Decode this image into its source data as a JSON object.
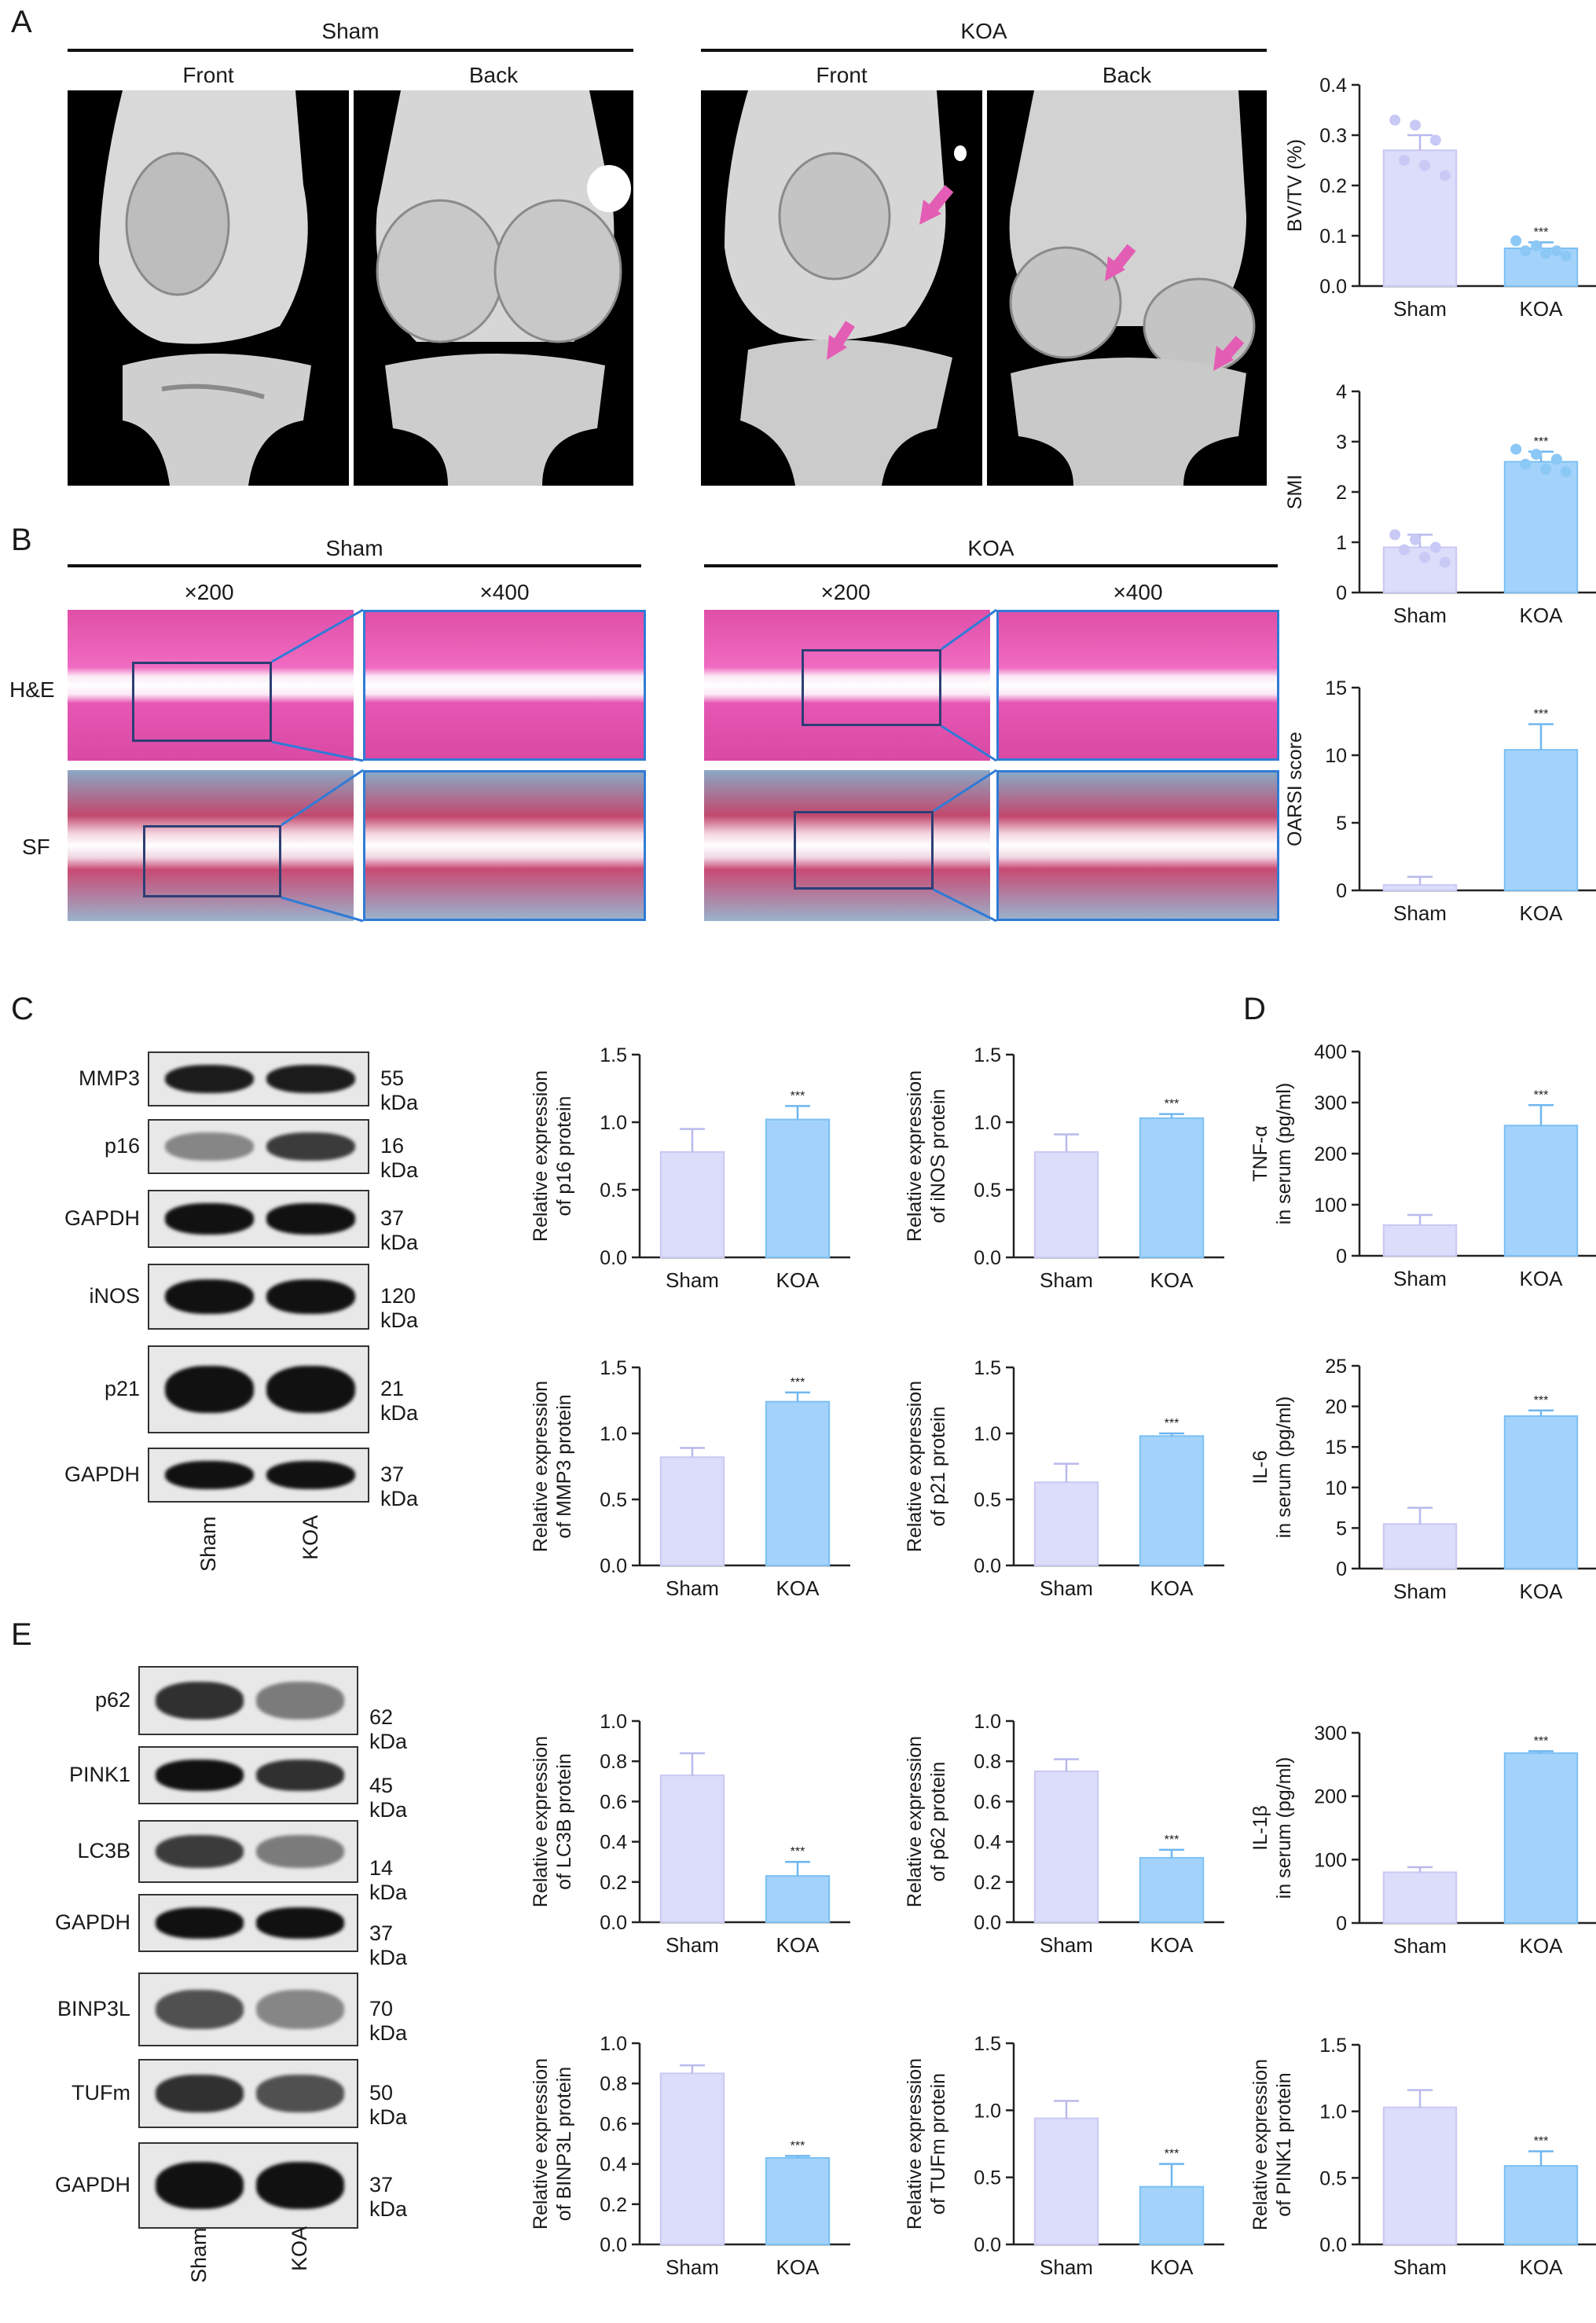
{
  "panels": {
    "A": "A",
    "B": "B",
    "C": "C",
    "D": "D",
    "E": "E"
  },
  "panelA": {
    "sham_title": "Sham",
    "koa_title": "KOA",
    "front": "Front",
    "back": "Back"
  },
  "panelB": {
    "sham_title": "Sham",
    "koa_title": "KOA",
    "mag_low": "×200",
    "mag_high": "×400",
    "row_he": "H&E",
    "row_sf": "SF"
  },
  "colors": {
    "sham_bar": "#dcdcfb",
    "sham_stroke": "#c9c9f2",
    "koa_bar": "#a3d3fb",
    "koa_stroke": "#7cc0f5",
    "sig": "#5a5ab0",
    "arrow": "#e35db5"
  },
  "blotC": {
    "rows": [
      {
        "name": "MMP3",
        "kda": "55 kDa"
      },
      {
        "name": "p16",
        "kda": "16 kDa"
      },
      {
        "name": "GAPDH",
        "kda": "37 kDa"
      },
      {
        "name": "iNOS",
        "kda": "120 kDa"
      },
      {
        "name": "p21",
        "kda": "21 kDa"
      },
      {
        "name": "GAPDH",
        "kda": "37 kDa"
      }
    ],
    "lanes": [
      "Sham",
      "KOA"
    ]
  },
  "blotE": {
    "rows": [
      {
        "name": "p62",
        "kda": "62 kDa"
      },
      {
        "name": "PINK1",
        "kda": "45 kDa"
      },
      {
        "name": "LC3B",
        "kda": "14 kDa"
      },
      {
        "name": "GAPDH",
        "kda": "37 kDa"
      },
      {
        "name": "BINP3L",
        "kda": "70 kDa"
      },
      {
        "name": "TUFm",
        "kda": "50 kDa"
      },
      {
        "name": "GAPDH",
        "kda": "37 kDa"
      }
    ],
    "lanes": [
      "Sham",
      "KOA"
    ]
  },
  "chart_data": [
    {
      "id": "bvtv",
      "type": "bar",
      "categories": [
        "Sham",
        "KOA"
      ],
      "values": [
        0.27,
        0.075
      ],
      "errors": [
        0.03,
        0.012
      ],
      "ylabel": "BV/TV (%)",
      "ylim": [
        0,
        0.4
      ],
      "ticks": [
        "0.0",
        "0.1",
        "0.2",
        "0.3",
        "0.4"
      ],
      "sig": "***",
      "points": [
        [
          0.33,
          0.32,
          0.29,
          0.25,
          0.24,
          0.22
        ],
        [
          0.09,
          0.08,
          0.07,
          0.07,
          0.065,
          0.06
        ]
      ]
    },
    {
      "id": "smi",
      "type": "bar",
      "categories": [
        "Sham",
        "KOA"
      ],
      "values": [
        0.9,
        2.6
      ],
      "errors": [
        0.25,
        0.2
      ],
      "ylabel": "SMI",
      "ylim": [
        0,
        4
      ],
      "ticks": [
        "0",
        "1",
        "2",
        "3",
        "4"
      ],
      "sig": "***",
      "points": [
        [
          1.15,
          1.05,
          0.9,
          0.85,
          0.7,
          0.6
        ],
        [
          2.85,
          2.75,
          2.65,
          2.55,
          2.45,
          2.4
        ]
      ]
    },
    {
      "id": "oarsi",
      "type": "bar",
      "categories": [
        "Sham",
        "KOA"
      ],
      "values": [
        0.4,
        10.4
      ],
      "errors": [
        0.6,
        1.9
      ],
      "ylabel": "OARSI score",
      "ylim": [
        0,
        15
      ],
      "ticks": [
        "0",
        "5",
        "10",
        "15"
      ],
      "sig": "***"
    },
    {
      "id": "p16",
      "type": "bar",
      "categories": [
        "Sham",
        "KOA"
      ],
      "values": [
        0.78,
        1.02
      ],
      "errors": [
        0.17,
        0.1
      ],
      "ylabel": [
        "Relative expression",
        "of p16 protein"
      ],
      "ylim": [
        0,
        1.5
      ],
      "ticks": [
        "0.0",
        "0.5",
        "1.0",
        "1.5"
      ],
      "sig": "***"
    },
    {
      "id": "inos",
      "type": "bar",
      "categories": [
        "Sham",
        "KOA"
      ],
      "values": [
        0.78,
        1.03
      ],
      "errors": [
        0.13,
        0.03
      ],
      "ylabel": [
        "Relative expression",
        "of iNOS protein"
      ],
      "ylim": [
        0,
        1.5
      ],
      "ticks": [
        "0.0",
        "0.5",
        "1.0",
        "1.5"
      ],
      "sig": "***"
    },
    {
      "id": "mmp3",
      "type": "bar",
      "categories": [
        "Sham",
        "KOA"
      ],
      "values": [
        0.82,
        1.24
      ],
      "errors": [
        0.07,
        0.07
      ],
      "ylabel": [
        "Relative expression",
        "of MMP3 protein"
      ],
      "ylim": [
        0,
        1.5
      ],
      "ticks": [
        "0.0",
        "0.5",
        "1.0",
        "1.5"
      ],
      "sig": "***"
    },
    {
      "id": "p21",
      "type": "bar",
      "categories": [
        "Sham",
        "KOA"
      ],
      "values": [
        0.63,
        0.98
      ],
      "errors": [
        0.14,
        0.02
      ],
      "ylabel": [
        "Relative expression",
        "of p21 protein"
      ],
      "ylim": [
        0,
        1.5
      ],
      "ticks": [
        "0.0",
        "0.5",
        "1.0",
        "1.5"
      ],
      "sig": "***"
    },
    {
      "id": "tnf",
      "type": "bar",
      "categories": [
        "Sham",
        "KOA"
      ],
      "values": [
        60,
        255
      ],
      "errors": [
        20,
        40
      ],
      "ylabel": [
        "TNF-α",
        "in serum (pg/ml)"
      ],
      "ylim": [
        0,
        400
      ],
      "ticks": [
        "0",
        "100",
        "200",
        "300",
        "400"
      ],
      "sig": "***"
    },
    {
      "id": "il6",
      "type": "bar",
      "categories": [
        "Sham",
        "KOA"
      ],
      "values": [
        5.5,
        18.8
      ],
      "errors": [
        2,
        0.7
      ],
      "ylabel": [
        "IL-6",
        "in serum (pg/ml)"
      ],
      "ylim": [
        0,
        25
      ],
      "ticks": [
        "0",
        "5",
        "10",
        "15",
        "20",
        "25"
      ],
      "sig": "***"
    },
    {
      "id": "lc3b",
      "type": "bar",
      "categories": [
        "Sham",
        "KOA"
      ],
      "values": [
        0.73,
        0.23
      ],
      "errors": [
        0.11,
        0.07
      ],
      "ylabel": [
        "Relative expression",
        "of LC3B protein"
      ],
      "ylim": [
        0,
        1.0
      ],
      "ticks": [
        "0.0",
        "0.2",
        "0.4",
        "0.6",
        "0.8",
        "1.0"
      ],
      "sig": "***"
    },
    {
      "id": "p62",
      "type": "bar",
      "categories": [
        "Sham",
        "KOA"
      ],
      "values": [
        0.75,
        0.32
      ],
      "errors": [
        0.06,
        0.04
      ],
      "ylabel": [
        "Relative expression",
        "of p62 protein"
      ],
      "ylim": [
        0,
        1.0
      ],
      "ticks": [
        "0.0",
        "0.2",
        "0.4",
        "0.6",
        "0.8",
        "1.0"
      ],
      "sig": "***"
    },
    {
      "id": "il1b",
      "type": "bar",
      "categories": [
        "Sham",
        "KOA"
      ],
      "values": [
        80,
        268
      ],
      "errors": [
        8,
        3
      ],
      "ylabel": [
        "IL-1β",
        "in serum (pg/ml)"
      ],
      "ylim": [
        0,
        300
      ],
      "ticks": [
        "0",
        "100",
        "200",
        "300"
      ],
      "sig": "***"
    },
    {
      "id": "binp3l",
      "type": "bar",
      "categories": [
        "Sham",
        "KOA"
      ],
      "values": [
        0.85,
        0.43
      ],
      "errors": [
        0.04,
        0.01
      ],
      "ylabel": [
        "Relative expression",
        "of BINP3L protein"
      ],
      "ylim": [
        0,
        1.0
      ],
      "ticks": [
        "0.0",
        "0.2",
        "0.4",
        "0.6",
        "0.8",
        "1.0"
      ],
      "sig": "***"
    },
    {
      "id": "tufm",
      "type": "bar",
      "categories": [
        "Sham",
        "KOA"
      ],
      "values": [
        0.94,
        0.43
      ],
      "errors": [
        0.13,
        0.17
      ],
      "ylabel": [
        "Relative expression",
        "of TUFm protein"
      ],
      "ylim": [
        0,
        1.5
      ],
      "ticks": [
        "0.0",
        "0.5",
        "1.0",
        "1.5"
      ],
      "sig": "***"
    },
    {
      "id": "pink1",
      "type": "bar",
      "categories": [
        "Sham",
        "KOA"
      ],
      "values": [
        1.03,
        0.59
      ],
      "errors": [
        0.13,
        0.11
      ],
      "ylabel": [
        "Relative expression",
        "of PINK1 protein"
      ],
      "ylim": [
        0,
        1.5
      ],
      "ticks": [
        "0.0",
        "0.5",
        "1.0",
        "1.5"
      ],
      "sig": "***"
    }
  ]
}
